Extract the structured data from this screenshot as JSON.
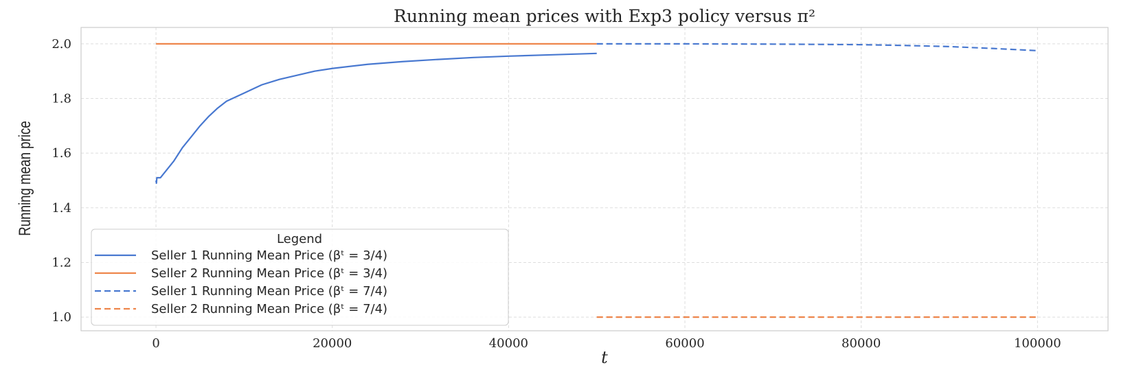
{
  "chart_data": {
    "type": "line",
    "title": "Running mean prices with Exp3 policy versus π²",
    "xlabel": "t",
    "ylabel": "Running mean price",
    "xlim": [
      -8500,
      108000
    ],
    "ylim": [
      0.95,
      2.06
    ],
    "xticks": [
      0,
      20000,
      40000,
      60000,
      80000,
      100000
    ],
    "yticks": [
      1.0,
      1.2,
      1.4,
      1.6,
      1.8,
      2.0
    ],
    "grid": true,
    "legend": {
      "title": "Legend",
      "placement": "lower-left"
    },
    "colors": {
      "seller1": "#4878d0",
      "seller2": "#ee854a"
    },
    "series": [
      {
        "name": "Seller 1 Running Mean Price (βᵗ = 3/4)",
        "color": "#4878d0",
        "dash": "solid",
        "points": [
          [
            0,
            1.5
          ],
          [
            50,
            1.49
          ],
          [
            100,
            1.51
          ],
          [
            500,
            1.51
          ],
          [
            1000,
            1.53
          ],
          [
            2000,
            1.57
          ],
          [
            3000,
            1.62
          ],
          [
            4000,
            1.66
          ],
          [
            5000,
            1.7
          ],
          [
            6000,
            1.735
          ],
          [
            7000,
            1.765
          ],
          [
            8000,
            1.79
          ],
          [
            10000,
            1.82
          ],
          [
            12000,
            1.85
          ],
          [
            14000,
            1.87
          ],
          [
            16000,
            1.885
          ],
          [
            18000,
            1.9
          ],
          [
            20000,
            1.91
          ],
          [
            24000,
            1.925
          ],
          [
            28000,
            1.935
          ],
          [
            32000,
            1.943
          ],
          [
            36000,
            1.95
          ],
          [
            40000,
            1.955
          ],
          [
            45000,
            1.96
          ],
          [
            50000,
            1.965
          ]
        ]
      },
      {
        "name": "Seller 2 Running Mean Price (βᵗ = 3/4)",
        "color": "#ee854a",
        "dash": "solid",
        "points": [
          [
            0,
            2.0
          ],
          [
            50000,
            2.0
          ]
        ]
      },
      {
        "name": "Seller 1 Running Mean Price (βᵗ = 7/4)",
        "color": "#4878d0",
        "dash": "dashed",
        "points": [
          [
            50000,
            2.0
          ],
          [
            60000,
            2.0
          ],
          [
            70000,
            1.999
          ],
          [
            80000,
            1.997
          ],
          [
            85000,
            1.994
          ],
          [
            90000,
            1.99
          ],
          [
            95000,
            1.983
          ],
          [
            100000,
            1.975
          ]
        ]
      },
      {
        "name": "Seller 2 Running Mean Price (βᵗ = 7/4)",
        "color": "#ee854a",
        "dash": "dashed",
        "points": [
          [
            50000,
            1.0
          ],
          [
            100000,
            1.0
          ]
        ]
      }
    ]
  }
}
